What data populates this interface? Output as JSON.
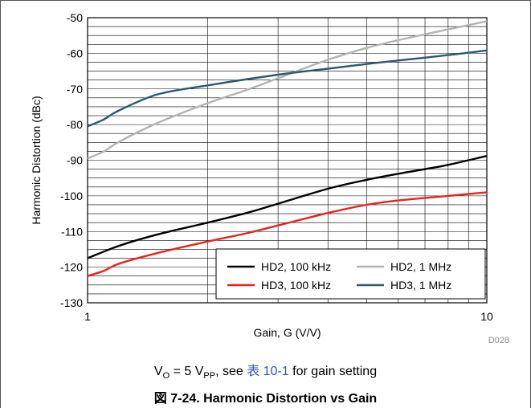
{
  "chart_data": {
    "type": "line",
    "title": "",
    "xlabel": "Gain, G (V/V)",
    "ylabel": "Harmonic Distortion (dBc)",
    "xscale": "log",
    "xlim": [
      1,
      10
    ],
    "ylim": [
      -130,
      -50
    ],
    "xticks": [
      1,
      10
    ],
    "yticks": [
      -130,
      -120,
      -110,
      -100,
      -90,
      -80,
      -70,
      -60,
      -50
    ],
    "grid": true,
    "legend_position": "bottom-right",
    "code": "D028",
    "series": [
      {
        "name": "HD2, 100 kHz",
        "color": "#000000",
        "x": [
          1,
          1.2,
          1.5,
          2,
          2.5,
          3,
          4,
          5,
          6,
          7,
          8,
          10
        ],
        "y": [
          -117.5,
          -114,
          -110.8,
          -107.5,
          -104.8,
          -102.2,
          -98,
          -95.5,
          -93.8,
          -92.5,
          -91.3,
          -88.8
        ]
      },
      {
        "name": "HD2, 1 MHz",
        "color": "#b3b3b3",
        "x": [
          1,
          1.1,
          1.2,
          1.5,
          2,
          2.5,
          3,
          4,
          5,
          6,
          8,
          10
        ],
        "y": [
          -89.5,
          -87.5,
          -84.8,
          -79.5,
          -74,
          -70.3,
          -67,
          -61.8,
          -58.5,
          -56.3,
          -53.3,
          -51
        ]
      },
      {
        "name": "HD3, 100 kHz",
        "color": "#e8231c",
        "x": [
          1,
          1.1,
          1.2,
          1.5,
          2,
          2.5,
          3,
          4,
          5,
          6,
          8,
          10
        ],
        "y": [
          -122.5,
          -121,
          -119,
          -116,
          -112.8,
          -110.5,
          -108.3,
          -104.8,
          -102.5,
          -101.3,
          -100,
          -99
        ]
      },
      {
        "name": "HD3, 1 MHz",
        "color": "#2e5a6e",
        "x": [
          1,
          1.1,
          1.2,
          1.5,
          2,
          3,
          4,
          5,
          6,
          8,
          10
        ],
        "y": [
          -80.5,
          -78.5,
          -76,
          -71.5,
          -69,
          -66,
          -64.3,
          -63,
          -62,
          -60.5,
          -59.2
        ]
      }
    ]
  },
  "caption": {
    "v": "V",
    "v_sub": "O",
    "eq": " = 5 V",
    "pp_sub": "PP",
    "see": ", see ",
    "link": "表 10-1",
    "rest": " for gain setting"
  },
  "figure_caption": "図 7-24. Harmonic Distortion vs Gain"
}
